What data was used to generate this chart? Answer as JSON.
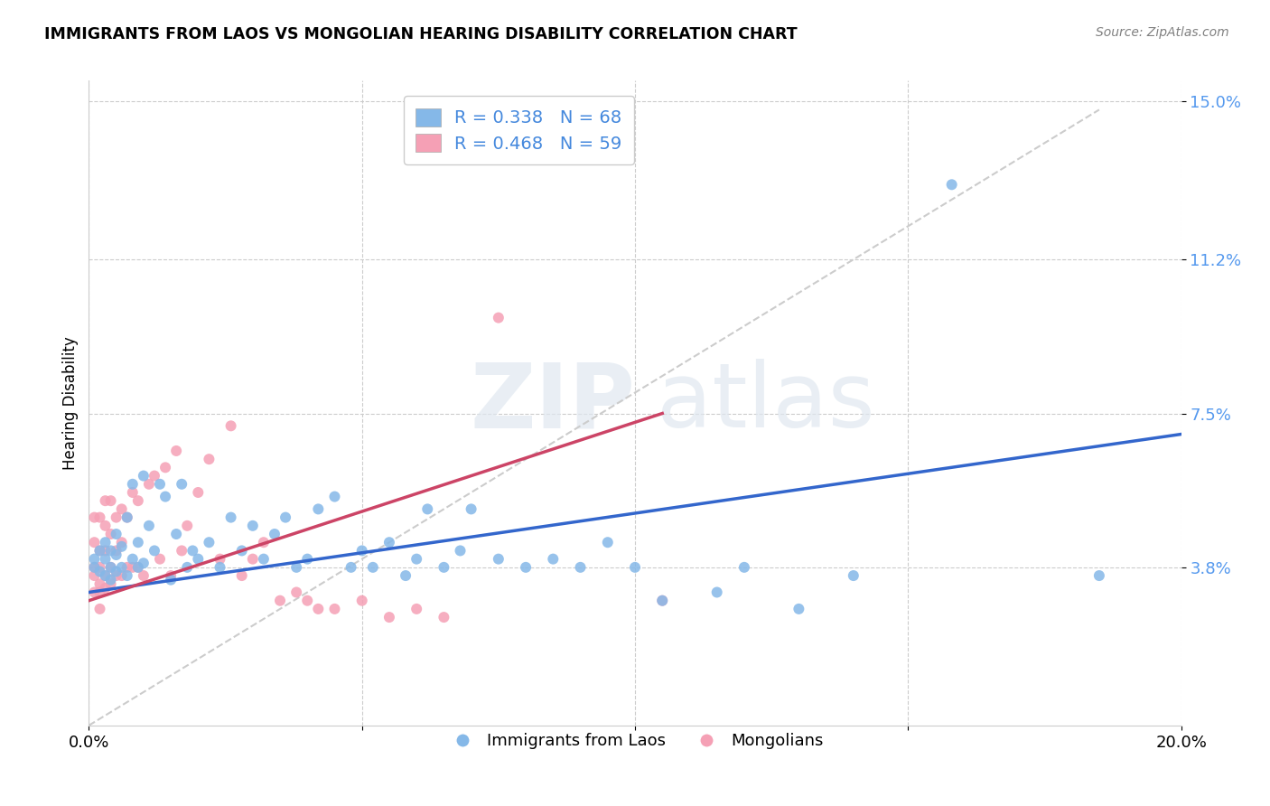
{
  "title": "IMMIGRANTS FROM LAOS VS MONGOLIAN HEARING DISABILITY CORRELATION CHART",
  "source": "Source: ZipAtlas.com",
  "ylabel": "Hearing Disability",
  "xlim": [
    0.0,
    0.2
  ],
  "ylim": [
    0.0,
    0.155
  ],
  "ytick_positions": [
    0.038,
    0.075,
    0.112,
    0.15
  ],
  "ytick_labels": [
    "3.8%",
    "7.5%",
    "11.2%",
    "15.0%"
  ],
  "blue_R": 0.338,
  "blue_N": 68,
  "pink_R": 0.468,
  "pink_N": 59,
  "blue_color": "#85b8e8",
  "pink_color": "#f5a0b5",
  "blue_line_color": "#3366cc",
  "pink_line_color": "#cc4466",
  "blue_line_x0": 0.0,
  "blue_line_y0": 0.032,
  "blue_line_x1": 0.2,
  "blue_line_y1": 0.07,
  "pink_line_x0": 0.0,
  "pink_line_y0": 0.03,
  "pink_line_x1": 0.105,
  "pink_line_y1": 0.075,
  "dash_line_x0": 0.0,
  "dash_line_y0": 0.0,
  "dash_line_x1": 0.185,
  "dash_line_y1": 0.148,
  "blue_scatter_x": [
    0.001,
    0.001,
    0.002,
    0.002,
    0.003,
    0.003,
    0.003,
    0.004,
    0.004,
    0.004,
    0.005,
    0.005,
    0.005,
    0.006,
    0.006,
    0.007,
    0.007,
    0.008,
    0.008,
    0.009,
    0.009,
    0.01,
    0.01,
    0.011,
    0.012,
    0.013,
    0.014,
    0.015,
    0.016,
    0.017,
    0.018,
    0.019,
    0.02,
    0.022,
    0.024,
    0.026,
    0.028,
    0.03,
    0.032,
    0.034,
    0.036,
    0.038,
    0.04,
    0.042,
    0.045,
    0.048,
    0.05,
    0.052,
    0.055,
    0.058,
    0.06,
    0.062,
    0.065,
    0.068,
    0.07,
    0.075,
    0.08,
    0.085,
    0.09,
    0.095,
    0.1,
    0.105,
    0.115,
    0.12,
    0.13,
    0.14,
    0.158,
    0.185
  ],
  "blue_scatter_y": [
    0.038,
    0.04,
    0.037,
    0.042,
    0.036,
    0.04,
    0.044,
    0.035,
    0.038,
    0.042,
    0.037,
    0.041,
    0.046,
    0.038,
    0.043,
    0.036,
    0.05,
    0.04,
    0.058,
    0.038,
    0.044,
    0.039,
    0.06,
    0.048,
    0.042,
    0.058,
    0.055,
    0.035,
    0.046,
    0.058,
    0.038,
    0.042,
    0.04,
    0.044,
    0.038,
    0.05,
    0.042,
    0.048,
    0.04,
    0.046,
    0.05,
    0.038,
    0.04,
    0.052,
    0.055,
    0.038,
    0.042,
    0.038,
    0.044,
    0.036,
    0.04,
    0.052,
    0.038,
    0.042,
    0.052,
    0.04,
    0.038,
    0.04,
    0.038,
    0.044,
    0.038,
    0.03,
    0.032,
    0.038,
    0.028,
    0.036,
    0.13,
    0.036
  ],
  "pink_scatter_x": [
    0.001,
    0.001,
    0.001,
    0.001,
    0.001,
    0.002,
    0.002,
    0.002,
    0.002,
    0.002,
    0.002,
    0.003,
    0.003,
    0.003,
    0.003,
    0.003,
    0.004,
    0.004,
    0.004,
    0.004,
    0.005,
    0.005,
    0.005,
    0.006,
    0.006,
    0.006,
    0.007,
    0.007,
    0.008,
    0.008,
    0.009,
    0.009,
    0.01,
    0.011,
    0.012,
    0.013,
    0.014,
    0.015,
    0.016,
    0.017,
    0.018,
    0.02,
    0.022,
    0.024,
    0.026,
    0.028,
    0.03,
    0.032,
    0.035,
    0.038,
    0.04,
    0.042,
    0.045,
    0.05,
    0.055,
    0.06,
    0.065,
    0.075,
    0.105
  ],
  "pink_scatter_y": [
    0.032,
    0.036,
    0.038,
    0.044,
    0.05,
    0.032,
    0.034,
    0.038,
    0.042,
    0.05,
    0.028,
    0.033,
    0.036,
    0.042,
    0.048,
    0.054,
    0.034,
    0.038,
    0.046,
    0.054,
    0.036,
    0.042,
    0.05,
    0.036,
    0.044,
    0.052,
    0.038,
    0.05,
    0.038,
    0.056,
    0.038,
    0.054,
    0.036,
    0.058,
    0.06,
    0.04,
    0.062,
    0.036,
    0.066,
    0.042,
    0.048,
    0.056,
    0.064,
    0.04,
    0.072,
    0.036,
    0.04,
    0.044,
    0.03,
    0.032,
    0.03,
    0.028,
    0.028,
    0.03,
    0.026,
    0.028,
    0.026,
    0.098,
    0.03
  ]
}
